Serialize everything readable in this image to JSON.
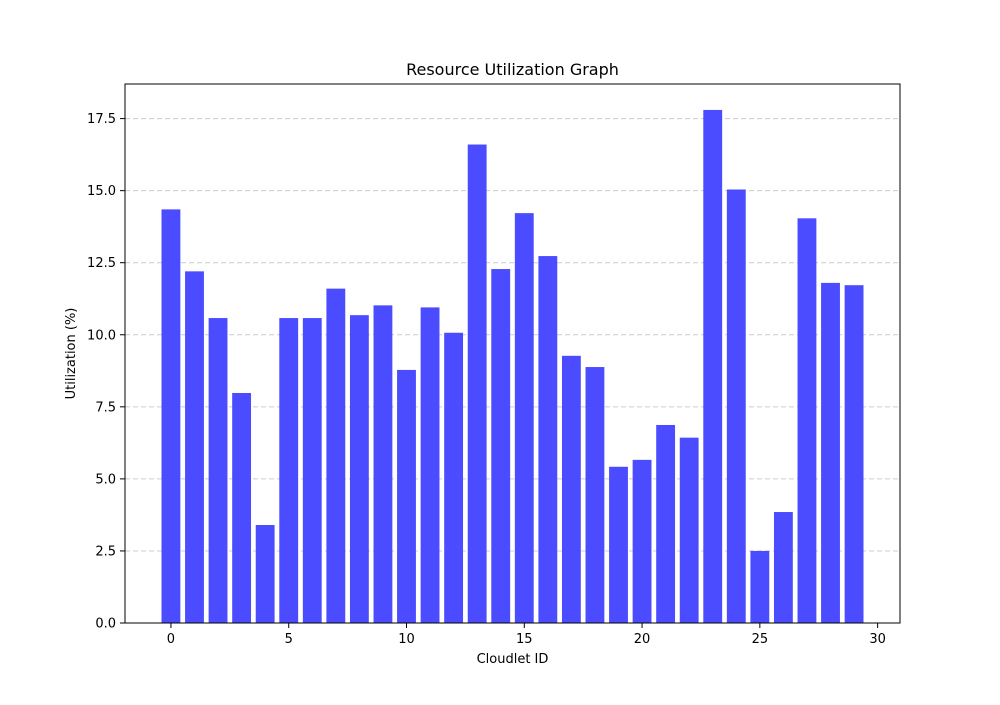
{
  "chart_data": {
    "type": "bar",
    "title": "Resource Utilization Graph",
    "xlabel": "Cloudlet ID",
    "ylabel": "Utilization (%)",
    "x": [
      0,
      1,
      2,
      3,
      4,
      5,
      6,
      7,
      8,
      9,
      10,
      11,
      12,
      13,
      14,
      15,
      16,
      17,
      18,
      19,
      20,
      21,
      22,
      23,
      24,
      25,
      26,
      27,
      28,
      29
    ],
    "values": [
      14.35,
      12.2,
      10.58,
      7.98,
      3.4,
      10.58,
      10.58,
      11.6,
      10.68,
      11.02,
      8.78,
      10.95,
      10.07,
      16.6,
      12.28,
      14.22,
      12.73,
      9.27,
      8.88,
      5.42,
      5.66,
      6.87,
      6.43,
      17.8,
      15.04,
      2.5,
      3.85,
      14.04,
      11.8,
      11.72
    ],
    "xlim": [
      -1.95,
      30.95
    ],
    "ylim": [
      0,
      18.7
    ],
    "xticks": [
      0,
      5,
      10,
      15,
      20,
      25,
      30
    ],
    "xtick_labels": [
      "0",
      "5",
      "10",
      "15",
      "20",
      "25",
      "30"
    ],
    "yticks": [
      0,
      2.5,
      5,
      7.5,
      10,
      12.5,
      15,
      17.5
    ],
    "ytick_labels": [
      "0.0",
      "2.5",
      "5.0",
      "7.5",
      "10.0",
      "12.5",
      "15.0",
      "17.5"
    ],
    "grid": "horizontal dashed",
    "bar_color": "#4b4bff",
    "grid_color": "#cccccc"
  }
}
